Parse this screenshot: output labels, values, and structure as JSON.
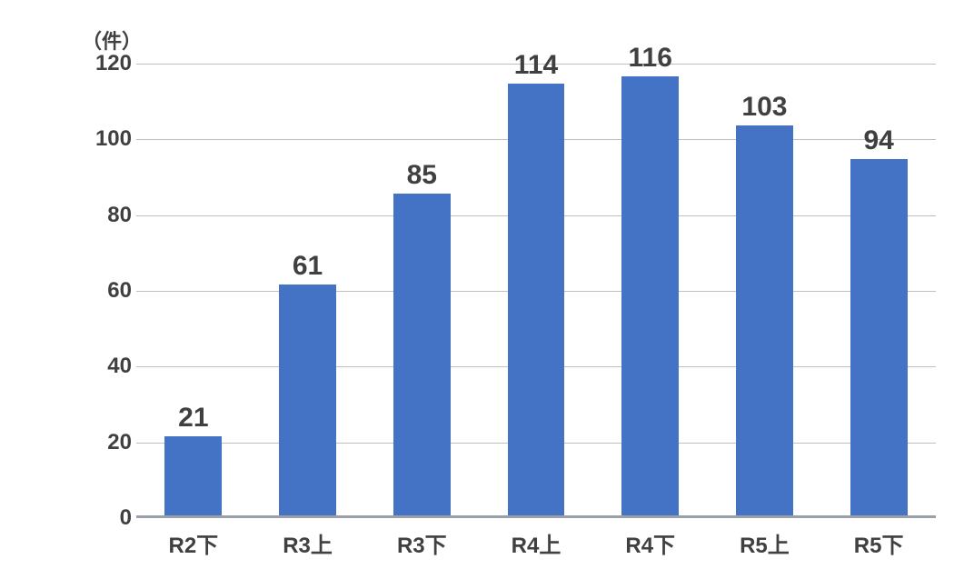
{
  "chart": {
    "type": "bar",
    "y_unit_label": "（件）",
    "y_unit_fontsize": 22,
    "categories": [
      "R2下",
      "R3上",
      "R3下",
      "R4上",
      "R4下",
      "R5上",
      "R5下"
    ],
    "values": [
      21,
      61,
      85,
      114,
      116,
      103,
      94
    ],
    "value_labels": [
      "21",
      "61",
      "85",
      "114",
      "116",
      "103",
      "94"
    ],
    "bar_color": "#4472c4",
    "bar_width_ratio": 0.5,
    "ylim": [
      0,
      120
    ],
    "ytick_step": 20,
    "yticks": [
      0,
      20,
      40,
      60,
      80,
      100,
      120
    ],
    "grid_color": "#bdbfc3",
    "axis_color": "#9aa0a8",
    "background_color": "#ffffff",
    "tick_fontsize": 24,
    "value_label_fontsize": 30,
    "category_fontsize": 24,
    "text_color": "#404040"
  }
}
